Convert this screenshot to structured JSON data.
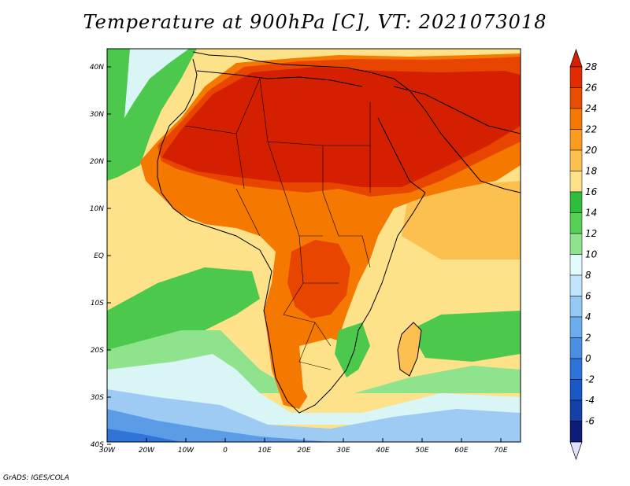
{
  "title": "Temperature at 900hPa [C], VT: 2021073018",
  "credit": "GrADS: IGES/COLA",
  "lon_labels": [
    "30W",
    "20W",
    "10W",
    "0",
    "10E",
    "20E",
    "30E",
    "40E",
    "50E",
    "60E",
    "70E"
  ],
  "lat_labels": [
    "40N",
    "30N",
    "20N",
    "10N",
    "EQ",
    "10S",
    "20S",
    "30S",
    "40S"
  ],
  "colorbar": {
    "labels": [
      "28",
      "26",
      "24",
      "22",
      "20",
      "18",
      "16",
      "14",
      "12",
      "10",
      "8",
      "6",
      "4",
      "2",
      "0",
      "-2",
      "-4",
      "-6"
    ],
    "colors": [
      "#e02c00",
      "#ea4c00",
      "#f57800",
      "#fb9c20",
      "#fcc050",
      "#fde28a",
      "#2fbe3c",
      "#56d156",
      "#8ee38c",
      "#e4fbfb",
      "#bfe4fb",
      "#94c9f3",
      "#6aacec",
      "#4b8fe2",
      "#2c72d8",
      "#1a58c8",
      "#1440a8",
      "#0d1c77"
    ],
    "top_arrow_color": "#d42000",
    "bottom_arrow_color": "#e0e0ff"
  },
  "map_colors": {
    "hot": "#d42000",
    "red_orange": "#e84500",
    "orange": "#f57800",
    "light_orange": "#fb9c20",
    "yellow_orange": "#fcc050",
    "pale_yellow": "#fde28a",
    "green": "#4cc94c",
    "light_green": "#8ee38c",
    "pale_cyan": "#d9f5f5",
    "light_blue": "#9ecbf3",
    "blue": "#5b9ce6",
    "dark_blue": "#2f74d6"
  }
}
